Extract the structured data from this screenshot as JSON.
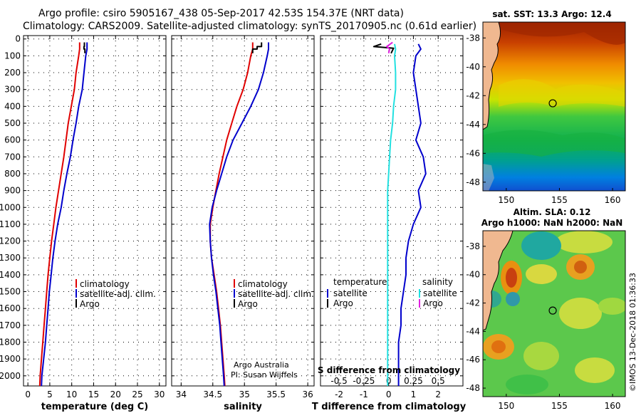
{
  "title_line1": "Argo profile: csiro 5905167_438 05-Sep-2017 42.53S 154.37E (NRT data)",
  "title_line2": "Climatology: CARS2009. Satellite-adjusted climatology: synTS_20170905.nc (0.61d earlier)",
  "colors": {
    "red": "#e00000",
    "blue": "#0000cc",
    "black": "#000000",
    "cyan": "#22e0e0",
    "magenta": "#e020e0"
  },
  "credit": {
    "line1": "Argo Australia",
    "line2": "PI: Susan Wijffels"
  },
  "imos_stamp": "©IMOS 13-Dec-2018 01:36:33",
  "chart_data": [
    {
      "type": "line",
      "name": "temperature",
      "xlabel": "temperature (deg C)",
      "xlim": [
        -1,
        31.5
      ],
      "xticks": [
        "0",
        "5",
        "10",
        "15",
        "20",
        "25",
        "30"
      ],
      "xtick_values": [
        0,
        5,
        10,
        15,
        20,
        25,
        30
      ],
      "ylim": [
        2060,
        -20
      ],
      "ytick_labels": [
        "0",
        "100",
        "200",
        "300",
        "400",
        "500",
        "600",
        "700",
        "800",
        "900",
        "1000",
        "1100",
        "1200",
        "1300",
        "1400",
        "1500",
        "1600",
        "1700",
        "1800",
        "1900",
        "2000"
      ],
      "legend": [
        "climatology",
        "satellite-adj. clim.",
        "Argo"
      ],
      "series": [
        {
          "name": "climatology",
          "color": "red",
          "points": [
            [
              11.8,
              20
            ],
            [
              11.8,
              60
            ],
            [
              11.6,
              100
            ],
            [
              11.0,
              200
            ],
            [
              10.6,
              300
            ],
            [
              9.9,
              400
            ],
            [
              9.2,
              500
            ],
            [
              8.7,
              600
            ],
            [
              8.2,
              700
            ],
            [
              7.6,
              800
            ],
            [
              7.0,
              900
            ],
            [
              6.4,
              1000
            ],
            [
              5.9,
              1100
            ],
            [
              5.4,
              1200
            ],
            [
              5.0,
              1300
            ],
            [
              4.6,
              1400
            ],
            [
              4.3,
              1500
            ],
            [
              4.0,
              1600
            ],
            [
              3.7,
              1700
            ],
            [
              3.4,
              1800
            ],
            [
              3.1,
              1900
            ],
            [
              2.8,
              2000
            ],
            [
              2.7,
              2060
            ]
          ]
        },
        {
          "name": "satellite-adj. clim.",
          "color": "blue",
          "points": [
            [
              13.5,
              20
            ],
            [
              13.5,
              60
            ],
            [
              13.2,
              100
            ],
            [
              12.8,
              200
            ],
            [
              12.4,
              300
            ],
            [
              11.6,
              400
            ],
            [
              11.0,
              500
            ],
            [
              10.3,
              600
            ],
            [
              9.7,
              700
            ],
            [
              8.9,
              800
            ],
            [
              8.2,
              900
            ],
            [
              7.6,
              1000
            ],
            [
              6.8,
              1100
            ],
            [
              6.2,
              1200
            ],
            [
              5.7,
              1300
            ],
            [
              5.3,
              1400
            ],
            [
              4.9,
              1500
            ],
            [
              4.6,
              1600
            ],
            [
              4.3,
              1700
            ],
            [
              4.0,
              1800
            ],
            [
              3.6,
              1900
            ],
            [
              3.2,
              2000
            ],
            [
              3.1,
              2060
            ]
          ]
        },
        {
          "name": "Argo",
          "color": "black",
          "points": [
            [
              12.9,
              20
            ],
            [
              12.9,
              45
            ],
            [
              12.8,
              45
            ],
            [
              12.8,
              60
            ],
            [
              13.0,
              60
            ],
            [
              13.0,
              85
            ]
          ]
        }
      ]
    },
    {
      "type": "line",
      "name": "salinity",
      "xlabel": "salinity",
      "xlim": [
        33.85,
        36.1
      ],
      "xticks": [
        "34",
        "34.5",
        "35",
        "35.5",
        "36"
      ],
      "xtick_values": [
        34,
        34.5,
        35,
        35.5,
        36
      ],
      "ylim": [
        2060,
        -20
      ],
      "legend": [
        "climatology",
        "satellite-adj. clim.",
        "Argo"
      ],
      "series": [
        {
          "name": "climatology",
          "color": "red",
          "points": [
            [
              35.13,
              20
            ],
            [
              35.13,
              60
            ],
            [
              35.1,
              100
            ],
            [
              35.05,
              200
            ],
            [
              34.98,
              300
            ],
            [
              34.88,
              400
            ],
            [
              34.8,
              500
            ],
            [
              34.72,
              600
            ],
            [
              34.66,
              700
            ],
            [
              34.6,
              800
            ],
            [
              34.55,
              900
            ],
            [
              34.5,
              1000
            ],
            [
              34.46,
              1100
            ],
            [
              34.46,
              1200
            ],
            [
              34.48,
              1300
            ],
            [
              34.52,
              1400
            ],
            [
              34.56,
              1500
            ],
            [
              34.59,
              1600
            ],
            [
              34.62,
              1700
            ],
            [
              34.64,
              1800
            ],
            [
              34.66,
              1900
            ],
            [
              34.68,
              2000
            ],
            [
              34.69,
              2060
            ]
          ]
        },
        {
          "name": "satellite-adj. clim.",
          "color": "blue",
          "points": [
            [
              35.38,
              20
            ],
            [
              35.38,
              60
            ],
            [
              35.36,
              100
            ],
            [
              35.3,
              200
            ],
            [
              35.22,
              300
            ],
            [
              35.1,
              400
            ],
            [
              34.96,
              500
            ],
            [
              34.82,
              600
            ],
            [
              34.72,
              700
            ],
            [
              34.64,
              800
            ],
            [
              34.56,
              900
            ],
            [
              34.49,
              1000
            ],
            [
              34.45,
              1100
            ],
            [
              34.46,
              1200
            ],
            [
              34.48,
              1300
            ],
            [
              34.51,
              1400
            ],
            [
              34.55,
              1500
            ],
            [
              34.58,
              1600
            ],
            [
              34.61,
              1700
            ],
            [
              34.63,
              1800
            ],
            [
              34.65,
              1900
            ],
            [
              34.67,
              2000
            ],
            [
              34.68,
              2060
            ]
          ]
        },
        {
          "name": "Argo",
          "color": "black",
          "points": [
            [
              35.27,
              20
            ],
            [
              35.27,
              45
            ],
            [
              35.2,
              45
            ],
            [
              35.2,
              60
            ],
            [
              35.13,
              60
            ],
            [
              35.13,
              85
            ]
          ]
        }
      ]
    },
    {
      "type": "line",
      "name": "difference",
      "xlabel": "T difference from climatology",
      "xlabel_top": "S difference from climatology",
      "xlim": [
        -2.75,
        3.0
      ],
      "xticks": [
        "-2",
        "-1",
        "0",
        "1",
        "2"
      ],
      "xtick_values": [
        -2,
        -1,
        0,
        1,
        2
      ],
      "xticks_top": [
        "-0.5",
        "-0.25",
        "0",
        "0.25",
        "0.5"
      ],
      "xtick_top_values": [
        -0.5,
        -0.25,
        0,
        0.25,
        0.5
      ],
      "xlim_top": [
        -0.6875,
        0.75
      ],
      "legend_left_title": "temperature",
      "legend_right_title": "salinity",
      "legend": [
        "satellite",
        "Argo"
      ],
      "series": [
        {
          "name": "T satellite",
          "color": "blue",
          "axis": "bottom",
          "points": [
            [
              1.2,
              30
            ],
            [
              1.3,
              60
            ],
            [
              1.1,
              100
            ],
            [
              1.0,
              200
            ],
            [
              1.1,
              300
            ],
            [
              1.2,
              400
            ],
            [
              1.3,
              500
            ],
            [
              1.1,
              600
            ],
            [
              1.4,
              700
            ],
            [
              1.5,
              800
            ],
            [
              1.2,
              900
            ],
            [
              1.3,
              1000
            ],
            [
              1.0,
              1100
            ],
            [
              0.8,
              1200
            ],
            [
              0.7,
              1300
            ],
            [
              0.7,
              1400
            ],
            [
              0.6,
              1500
            ],
            [
              0.5,
              1600
            ],
            [
              0.5,
              1700
            ],
            [
              0.4,
              1800
            ],
            [
              0.4,
              1900
            ],
            [
              0.4,
              2000
            ],
            [
              0.4,
              2060
            ]
          ]
        },
        {
          "name": "S satellite",
          "color": "cyan",
          "axis": "top",
          "points": [
            [
              0.06,
              30
            ],
            [
              0.07,
              60
            ],
            [
              0.06,
              100
            ],
            [
              0.07,
              200
            ],
            [
              0.07,
              300
            ],
            [
              0.05,
              400
            ],
            [
              0.04,
              500
            ],
            [
              0.02,
              600
            ],
            [
              0.01,
              700
            ],
            [
              0.0,
              800
            ],
            [
              -0.01,
              900
            ],
            [
              -0.01,
              1000
            ],
            [
              -0.01,
              1100
            ],
            [
              -0.01,
              1200
            ],
            [
              -0.01,
              1300
            ],
            [
              -0.01,
              1400
            ],
            [
              -0.01,
              1500
            ],
            [
              -0.01,
              1600
            ],
            [
              -0.01,
              1700
            ],
            [
              -0.01,
              1800
            ],
            [
              -0.01,
              1900
            ],
            [
              -0.01,
              2000
            ],
            [
              -0.01,
              2060
            ]
          ]
        },
        {
          "name": "T Argo",
          "color": "black",
          "axis": "bottom",
          "points": [
            [
              -0.3,
              30
            ],
            [
              -0.6,
              45
            ],
            [
              0.2,
              55
            ],
            [
              0.1,
              85
            ]
          ]
        },
        {
          "name": "S Argo",
          "color": "magenta",
          "axis": "top",
          "points": [
            [
              0.04,
              20
            ],
            [
              -0.02,
              45
            ],
            [
              0.01,
              60
            ],
            [
              0.0,
              85
            ]
          ]
        }
      ]
    },
    {
      "type": "heatmap",
      "name": "sst_map",
      "title": "sat. SST: 13.3 Argo: 12.4",
      "xticks": [
        "150",
        "155",
        "160"
      ],
      "xtick_values": [
        150,
        155,
        160
      ],
      "yticks": [
        "-38",
        "-40",
        "-42",
        "-44",
        "-46",
        "-48"
      ],
      "ytick_values": [
        -38,
        -40,
        -42,
        -44,
        -46,
        -48
      ],
      "xlim": [
        147.8,
        161.2
      ],
      "ylim": [
        -36.9,
        -48.6
      ],
      "argo_position": [
        154.37,
        -42.53
      ]
    },
    {
      "type": "heatmap",
      "name": "sla_map",
      "title_line1": "Altim. SLA: 0.12",
      "title_line2": "Argo h1000: NaN h2000: NaN",
      "xticks": [
        "150",
        "155",
        "160"
      ],
      "xtick_values": [
        150,
        155,
        160
      ],
      "yticks": [
        "-38",
        "-40",
        "-42",
        "-44",
        "-46",
        "-48"
      ],
      "ytick_values": [
        -38,
        -40,
        -42,
        -44,
        -46,
        -48
      ],
      "xlim": [
        147.8,
        161.2
      ],
      "ylim": [
        -36.9,
        -48.6
      ],
      "argo_position": [
        154.37,
        -42.53
      ]
    }
  ]
}
